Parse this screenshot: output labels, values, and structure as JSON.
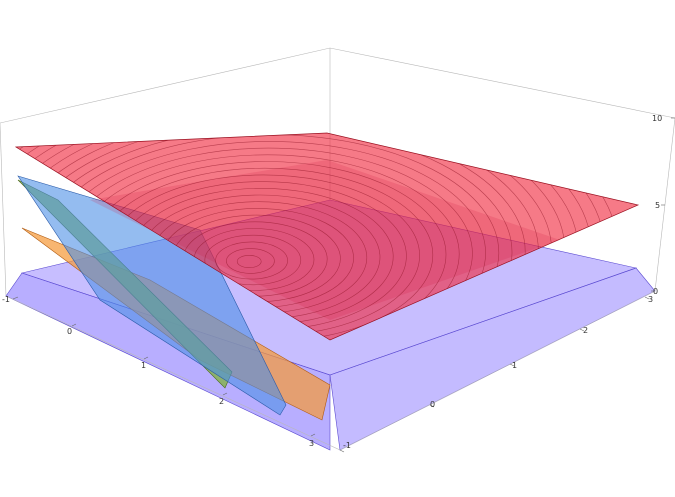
{
  "chart_data": {
    "type": "surface3d",
    "title": "",
    "x_axis": {
      "label": "",
      "range": [
        -1,
        3
      ],
      "ticks": [
        "-1",
        "0",
        "1",
        "2",
        "3"
      ]
    },
    "y_axis": {
      "label": "",
      "range": [
        -1,
        3
      ],
      "ticks": [
        "-1",
        "0",
        "1",
        "2",
        "3"
      ]
    },
    "z_axis": {
      "label": "",
      "range": [
        0,
        10
      ],
      "ticks": [
        "0",
        "5",
        "10"
      ]
    },
    "box": true,
    "grid": false,
    "legend": "none",
    "surfaces": [
      {
        "kind": "paraboloid",
        "center": [
          1,
          1
        ],
        "min_z": 5,
        "corner_z": [
          10,
          7,
          8,
          9.5
        ],
        "color": "#e8283c",
        "contours": true
      },
      {
        "kind": "region-slab",
        "z_top": 3.5,
        "color": "#7766ff"
      },
      {
        "kind": "plane",
        "color": "#f08a28"
      },
      {
        "kind": "plane",
        "color": "#4a86e0"
      },
      {
        "kind": "plane",
        "color": "#6b9a2a"
      }
    ]
  }
}
